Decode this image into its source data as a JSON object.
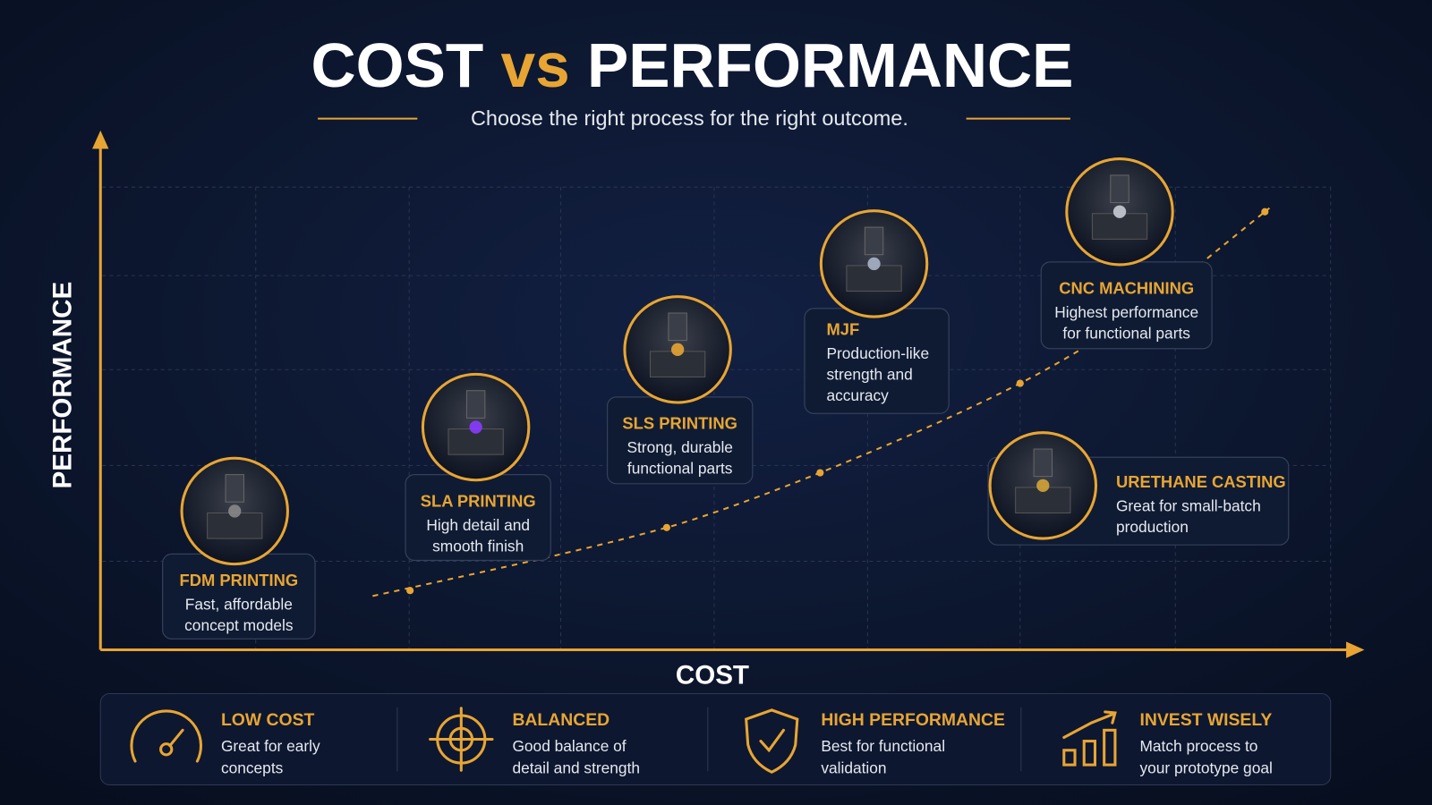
{
  "header": {
    "title": [
      "COST",
      "vs",
      "PERFORMANCE"
    ],
    "subtitle": "Choose the right process for the right outcome."
  },
  "axes": {
    "y_label": "PERFORMANCE",
    "x_label": "COST"
  },
  "processes": [
    {
      "name": "FDM PRINTING",
      "desc": [
        "Fast, affordable",
        "concept models"
      ]
    },
    {
      "name": "SLA PRINTING",
      "desc": [
        "High detail and",
        "smooth finish"
      ]
    },
    {
      "name": "SLS PRINTING",
      "desc": [
        "Strong, durable",
        "functional parts"
      ]
    },
    {
      "name": "MJF",
      "desc": [
        "Production-like",
        "strength and",
        "accuracy"
      ]
    },
    {
      "name": "CNC MACHINING",
      "desc": [
        "Highest performance",
        "for functional parts"
      ]
    },
    {
      "name": "URETHANE CASTING",
      "desc": [
        "Great for small-batch",
        "production"
      ]
    }
  ],
  "footer": [
    {
      "title": "LOW COST",
      "desc": [
        "Great for early",
        "concepts"
      ]
    },
    {
      "title": "BALANCED",
      "desc": [
        "Good balance of",
        "detail and strength"
      ]
    },
    {
      "title": "HIGH PERFORMANCE",
      "desc": [
        "Best for functional",
        "validation"
      ]
    },
    {
      "title": "INVEST WISELY",
      "desc": [
        "Match process to",
        "your prototype goal"
      ]
    }
  ]
}
